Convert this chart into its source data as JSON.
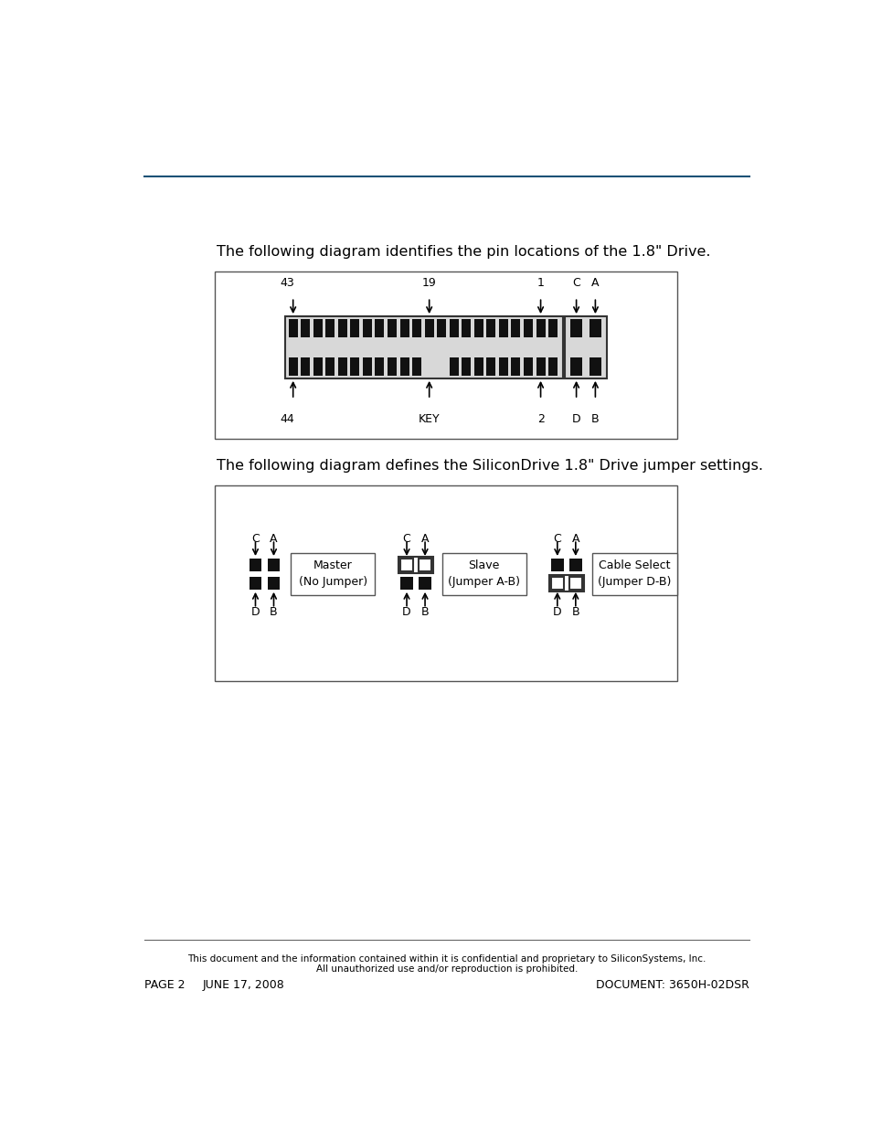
{
  "bg_color": "#ffffff",
  "top_line_color": "#1a5276",
  "bottom_line_color": "#666666",
  "intro_text1": "The following diagram identifies the pin locations of the 1.8\" Drive.",
  "intro_text2": "The following diagram defines the SiliconDrive 1.8\" Drive jumper settings.",
  "footer_left1": "PAGE 2",
  "footer_left2": "JUNE 17, 2008",
  "footer_right": "DOCUMENT: 3650H-02DSR",
  "footer_center1": "This document and the information contained within it is confidential and proprietary to SiliconSystems, Inc.",
  "footer_center2": "All unauthorized use and/or reproduction is prohibited."
}
